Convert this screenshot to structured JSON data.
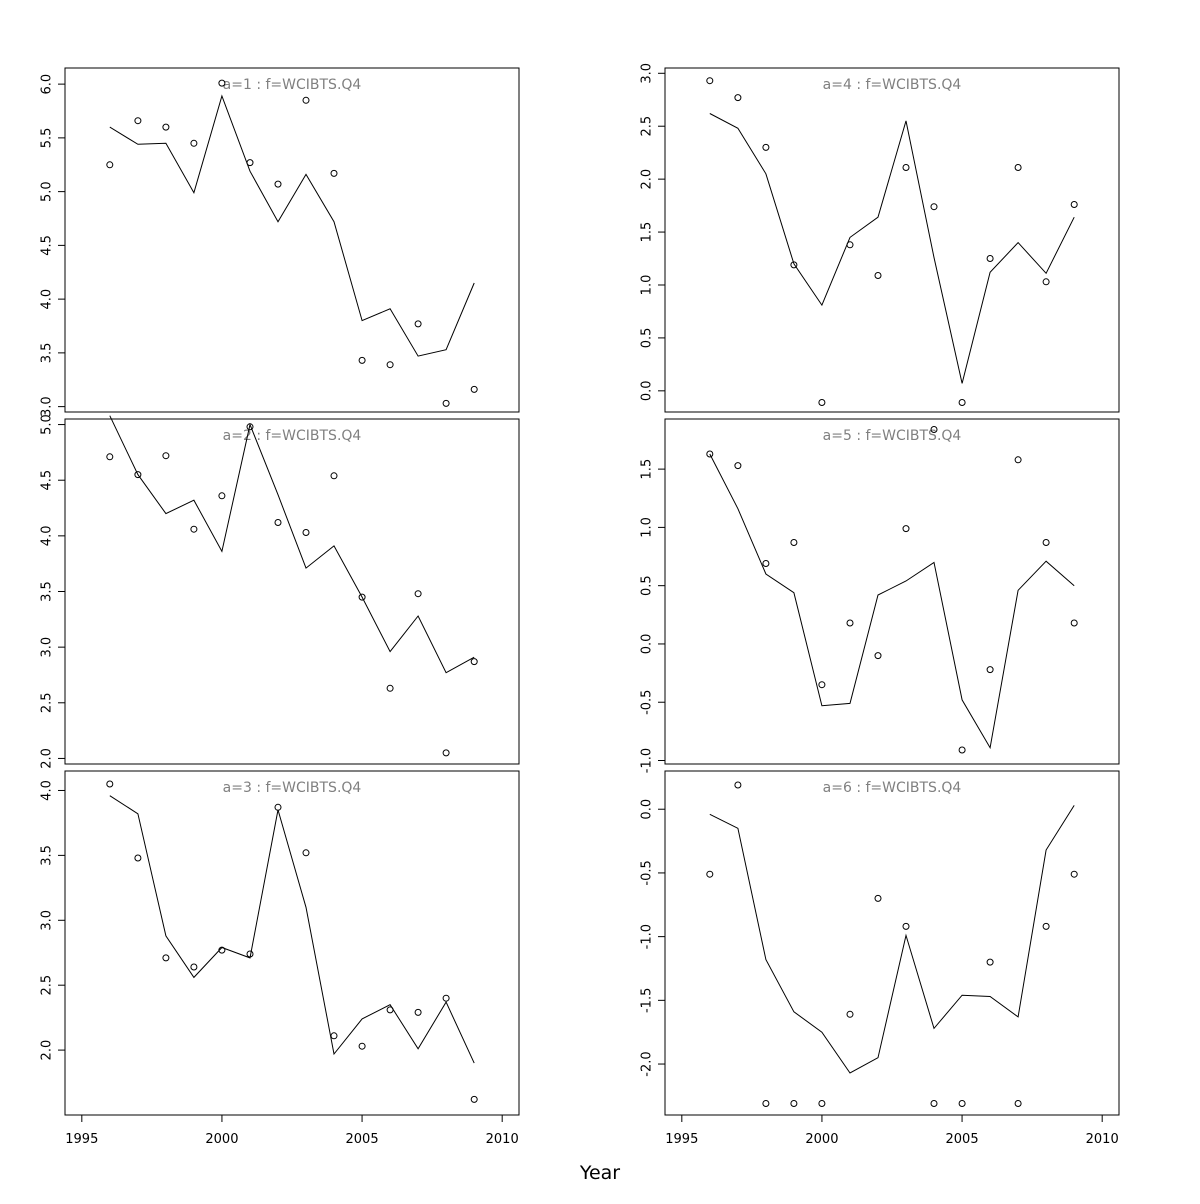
{
  "figure": {
    "xlabel": "Year",
    "x_ticks": [
      1995,
      2000,
      2005,
      2010
    ],
    "line_color": "#000000",
    "title_color": "#808080"
  },
  "chart_data": [
    {
      "type": "line+scatter",
      "title": "a=1 : f=WCIBTS.Q4",
      "xlim": [
        1994.4,
        2010.6
      ],
      "ylim": [
        2.95,
        6.15
      ],
      "y_ticks": [
        "3.0",
        "3.5",
        "4.0",
        "4.5",
        "5.0",
        "5.5",
        "6.0"
      ],
      "x": [
        1996,
        1997,
        1998,
        1999,
        2000,
        2001,
        2002,
        2003,
        2004,
        2005,
        2006,
        2007,
        2008,
        2009
      ],
      "fitted": [
        5.6,
        5.44,
        5.45,
        4.99,
        5.89,
        5.19,
        4.72,
        5.16,
        4.72,
        3.8,
        3.91,
        3.47,
        3.53,
        4.15
      ],
      "observed": [
        5.25,
        5.66,
        5.6,
        5.45,
        6.01,
        5.27,
        5.07,
        5.85,
        5.17,
        3.43,
        3.39,
        3.77,
        3.03,
        3.16
      ]
    },
    {
      "type": "line+scatter",
      "title": "a=2 : f=WCIBTS.Q4",
      "xlim": [
        1994.4,
        2010.6
      ],
      "ylim": [
        1.95,
        5.05
      ],
      "y_ticks": [
        "2.0",
        "2.5",
        "3.0",
        "3.5",
        "4.0",
        "4.5",
        "5.0"
      ],
      "x": [
        1996,
        1997,
        1998,
        1999,
        2000,
        2001,
        2002,
        2003,
        2004,
        2005,
        2006,
        2007,
        2008,
        2009
      ],
      "fitted": [
        5.08,
        4.55,
        4.2,
        4.32,
        3.86,
        5.0,
        4.37,
        3.71,
        3.91,
        3.45,
        2.96,
        3.28,
        2.77,
        2.91
      ],
      "observed": [
        4.71,
        4.55,
        4.72,
        4.06,
        4.36,
        4.98,
        4.12,
        4.03,
        4.54,
        3.45,
        2.63,
        3.48,
        2.05,
        2.87
      ]
    },
    {
      "type": "line+scatter",
      "title": "a=3 : f=WCIBTS.Q4",
      "xlim": [
        1994.4,
        2010.6
      ],
      "ylim": [
        1.5,
        4.15
      ],
      "y_ticks": [
        "2.0",
        "2.5",
        "3.0",
        "3.5",
        "4.0"
      ],
      "x": [
        1996,
        1997,
        1998,
        1999,
        2000,
        2001,
        2002,
        2003,
        2004,
        2005,
        2006,
        2007,
        2008,
        2009
      ],
      "fitted": [
        3.96,
        3.82,
        2.88,
        2.56,
        2.79,
        2.71,
        3.85,
        3.1,
        1.97,
        2.24,
        2.35,
        2.01,
        2.37,
        1.9
      ],
      "observed": [
        4.05,
        3.48,
        2.71,
        2.64,
        2.77,
        2.74,
        3.87,
        3.52,
        2.11,
        2.03,
        2.31,
        2.29,
        2.4,
        1.62
      ]
    },
    {
      "type": "line+scatter",
      "title": "a=4 : f=WCIBTS.Q4",
      "xlim": [
        1994.4,
        2010.6
      ],
      "ylim": [
        -0.2,
        3.05
      ],
      "y_ticks": [
        "0.0",
        "0.5",
        "1.0",
        "1.5",
        "2.0",
        "2.5",
        "3.0"
      ],
      "x": [
        1996,
        1997,
        1998,
        1999,
        2000,
        2001,
        2002,
        2003,
        2004,
        2005,
        2006,
        2007,
        2008,
        2009
      ],
      "fitted": [
        2.62,
        2.48,
        2.05,
        1.2,
        0.81,
        1.45,
        1.64,
        2.55,
        1.26,
        0.07,
        1.12,
        1.4,
        1.11,
        1.64
      ],
      "observed": [
        2.93,
        2.77,
        2.3,
        1.19,
        -0.11,
        1.38,
        1.09,
        2.11,
        1.74,
        -0.11,
        1.25,
        2.11,
        1.03,
        1.76
      ]
    },
    {
      "type": "line+scatter",
      "title": "a=5 : f=WCIBTS.Q4",
      "xlim": [
        1994.4,
        2010.6
      ],
      "ylim": [
        -1.03,
        1.93
      ],
      "y_ticks": [
        "-1.0",
        "-0.5",
        "0.0",
        "0.5",
        "1.0",
        "1.5"
      ],
      "x": [
        1996,
        1997,
        1998,
        1999,
        2000,
        2001,
        2002,
        2003,
        2004,
        2005,
        2006,
        2007,
        2008,
        2009
      ],
      "fitted": [
        1.63,
        1.16,
        0.6,
        0.44,
        -0.53,
        -0.51,
        0.42,
        0.54,
        0.7,
        -0.48,
        -0.89,
        0.46,
        0.71,
        0.5
      ],
      "observed": [
        1.63,
        1.53,
        0.69,
        0.87,
        -0.35,
        0.18,
        -0.1,
        0.99,
        1.84,
        -0.91,
        -0.22,
        1.58,
        0.87,
        0.18
      ]
    },
    {
      "type": "line+scatter",
      "title": "a=6 : f=WCIBTS.Q4",
      "xlim": [
        1994.4,
        2010.6
      ],
      "ylim": [
        -2.4,
        0.3
      ],
      "y_ticks": [
        "-2.0",
        "-1.5",
        "-1.0",
        "-0.5",
        "0.0"
      ],
      "x": [
        1996,
        1997,
        1998,
        1999,
        2000,
        2001,
        2002,
        2003,
        2004,
        2005,
        2006,
        2007,
        2008,
        2009
      ],
      "fitted": [
        -0.04,
        -0.15,
        -1.18,
        -1.59,
        -1.75,
        -2.07,
        -1.95,
        -0.99,
        -1.72,
        -1.46,
        -1.47,
        -1.63,
        -0.32,
        0.03
      ],
      "observed": [
        -0.51,
        0.19,
        -2.31,
        -2.31,
        -2.31,
        -1.61,
        -0.7,
        -0.92,
        -2.31,
        -2.31,
        -1.2,
        -2.31,
        -0.92,
        -0.51
      ]
    }
  ]
}
